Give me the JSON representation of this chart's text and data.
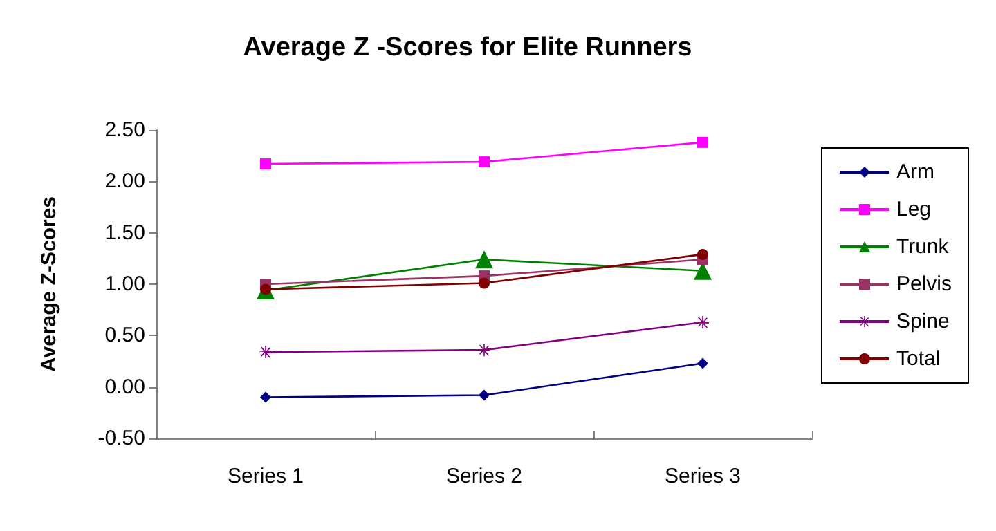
{
  "chart_data": {
    "type": "line",
    "title": "Average Z -Scores for Elite Runners",
    "ylabel": "Average Z-Scores",
    "categories": [
      "Series 1",
      "Series 2",
      "Series 3"
    ],
    "ylim": [
      -0.5,
      2.5
    ],
    "yticks": [
      {
        "value": -0.5,
        "label": "-0.50"
      },
      {
        "value": 0,
        "label": "0.00"
      },
      {
        "value": 0.5,
        "label": "0.50"
      },
      {
        "value": 1,
        "label": "1.00"
      },
      {
        "value": 1.5,
        "label": "1.50"
      },
      {
        "value": 2,
        "label": "2.00"
      },
      {
        "value": 2.5,
        "label": "2.50"
      }
    ],
    "grid": false,
    "legend": "right",
    "line_style": "solid",
    "series": [
      {
        "name": "Arm",
        "color": "#000080",
        "marker": "diamond",
        "values": [
          -0.1,
          -0.08,
          0.23
        ]
      },
      {
        "name": "Leg",
        "color": "#ff00ff",
        "marker": "square",
        "values": [
          2.17,
          2.19,
          2.38
        ]
      },
      {
        "name": "Trunk",
        "color": "#008000",
        "marker": "triangle",
        "values": [
          0.94,
          1.24,
          1.13
        ]
      },
      {
        "name": "Pelvis",
        "color": "#993366",
        "marker": "square",
        "values": [
          1.0,
          1.08,
          1.24
        ]
      },
      {
        "name": "Spine",
        "color": "#800080",
        "marker": "star",
        "values": [
          0.34,
          0.36,
          0.63
        ]
      },
      {
        "name": "Total",
        "color": "#800000",
        "marker": "circle",
        "values": [
          0.95,
          1.01,
          1.29
        ]
      }
    ]
  }
}
